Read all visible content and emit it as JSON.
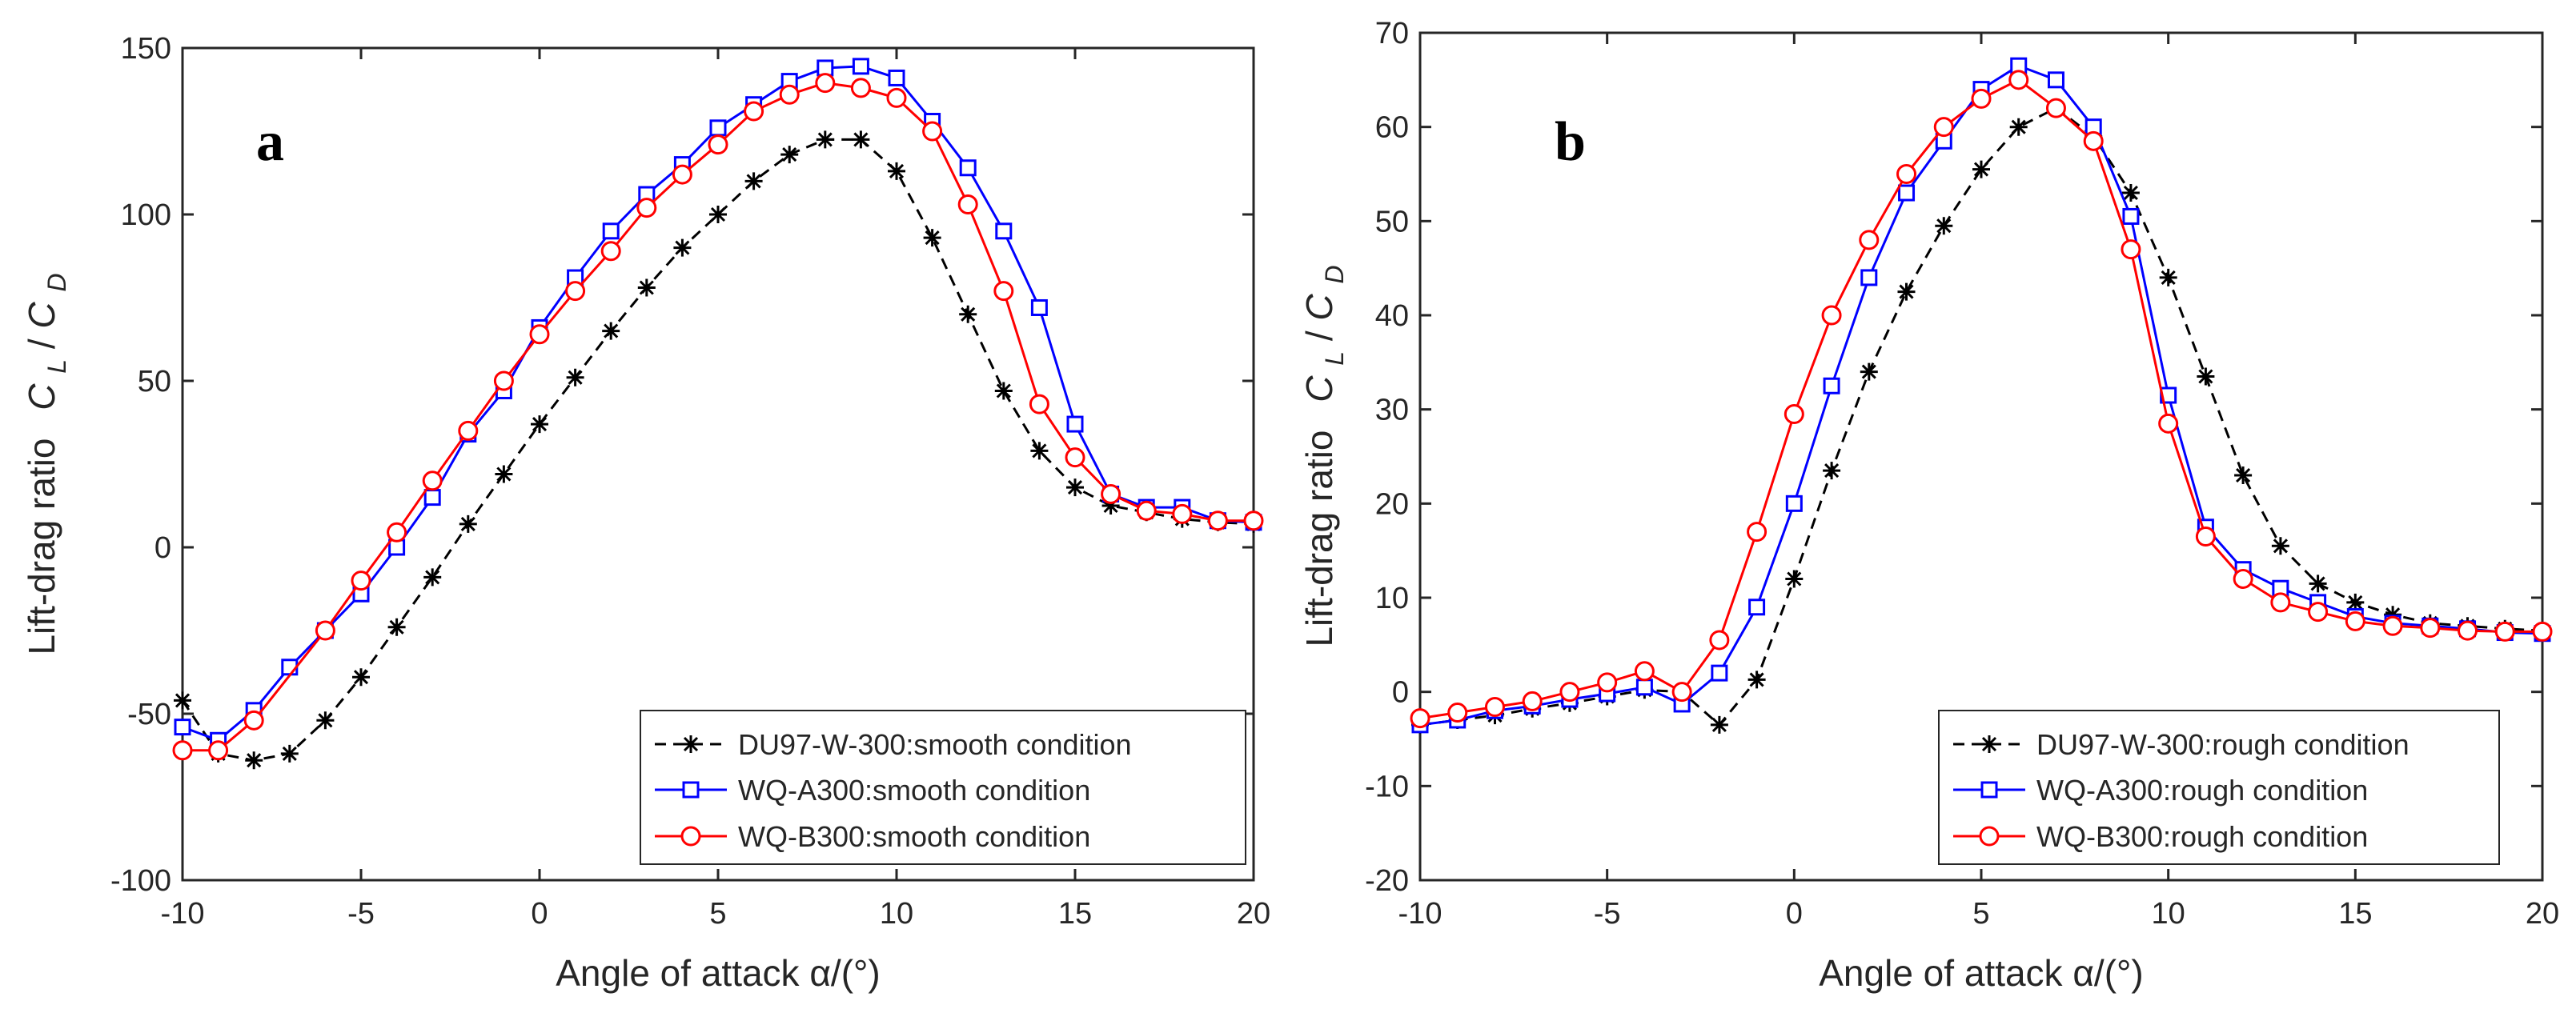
{
  "chart_data": [
    {
      "type": "line",
      "panel_label": "a",
      "xlabel": "Angle of attack α/(°)",
      "ylabel": "Lift-drag ratio",
      "ylabel_symbol": {
        "C1": "C",
        "sub1": "L",
        "slash": "/",
        "C2": "C",
        "sub2": "D"
      },
      "xlim": [
        -10,
        20
      ],
      "ylim": [
        -100,
        150
      ],
      "xticks": [
        -10,
        -5,
        0,
        5,
        10,
        15,
        20
      ],
      "yticks": [
        -100,
        -50,
        0,
        50,
        100,
        150
      ],
      "legend_position": "bottom-right",
      "x": [
        -10,
        -9,
        -8,
        -7,
        -6,
        -5,
        -4,
        -3,
        -2,
        -1,
        0,
        1,
        2,
        3,
        4,
        5,
        6,
        7,
        8,
        9,
        10,
        11,
        12,
        13,
        14,
        15,
        16,
        17,
        18,
        19,
        20
      ],
      "series": [
        {
          "name": "DU97-W-300:smooth condition",
          "color": "#000000",
          "marker": "asterisk",
          "dash": "dashed",
          "values": [
            -46,
            -62,
            -64,
            -62,
            -52,
            -39,
            -24,
            -9,
            7,
            22,
            37,
            51,
            65,
            78,
            90,
            100,
            110,
            118,
            122.5,
            122.5,
            113,
            93,
            70,
            47,
            29,
            18,
            12.5,
            10.5,
            8.5,
            7.5,
            7
          ]
        },
        {
          "name": "WQ-A300:smooth condition",
          "color": "#0000ff",
          "marker": "square",
          "dash": "solid",
          "values": [
            -54,
            -58,
            -49,
            -36,
            -25,
            -14,
            0,
            15,
            34,
            47,
            66,
            81,
            95,
            106,
            115,
            126,
            133,
            140,
            144,
            144.5,
            141,
            128,
            114,
            95,
            72,
            37,
            16,
            12,
            12,
            8,
            7.5
          ]
        },
        {
          "name": "WQ-B300:smooth condition",
          "color": "#ff0000",
          "marker": "circle",
          "dash": "solid",
          "values": [
            -61,
            -61,
            -52,
            null,
            -25,
            -10,
            4.5,
            20,
            35,
            50,
            64,
            77,
            89,
            102,
            112,
            121,
            131,
            136,
            139.5,
            138,
            135,
            125,
            103,
            77,
            43,
            27,
            16,
            11,
            10,
            8,
            8
          ]
        }
      ]
    },
    {
      "type": "line",
      "panel_label": "b",
      "xlabel": "Angle of attack α/(°)",
      "ylabel": "Lift-drag ratio",
      "ylabel_symbol": {
        "C1": "C",
        "sub1": "L",
        "slash": "/",
        "C2": "C",
        "sub2": "D"
      },
      "xlim": [
        -10,
        20
      ],
      "ylim": [
        -20,
        70
      ],
      "xticks": [
        -10,
        -5,
        0,
        5,
        10,
        15,
        20
      ],
      "yticks": [
        -20,
        -10,
        0,
        10,
        20,
        30,
        40,
        50,
        60,
        70
      ],
      "legend_position": "bottom-right",
      "x": [
        -10,
        -9,
        -8,
        -7,
        -6,
        -5,
        -4,
        -3,
        -2,
        -1,
        0,
        1,
        2,
        3,
        4,
        5,
        6,
        7,
        8,
        9,
        10,
        11,
        12,
        13,
        14,
        15,
        16,
        17,
        18,
        19,
        20
      ],
      "series": [
        {
          "name": "DU97-W-300:rough condition",
          "color": "#000000",
          "marker": "asterisk",
          "dash": "dashed",
          "values": [
            -3.5,
            -3,
            -2.5,
            -1.8,
            -1.2,
            -0.5,
            0.2,
            0,
            -3.5,
            1.3,
            12,
            23.5,
            34,
            42.5,
            49.5,
            55.5,
            60,
            62,
            59,
            53,
            44,
            33.5,
            23,
            15.5,
            11.5,
            9.5,
            8.2,
            7.3,
            7,
            6.7,
            6.5
          ]
        },
        {
          "name": "WQ-A300:rough condition",
          "color": "#0000ff",
          "marker": "square",
          "dash": "solid",
          "values": [
            -3.5,
            -3,
            -2,
            -1.5,
            -0.8,
            -0.2,
            0.5,
            -1.3,
            2,
            9,
            20,
            32.5,
            44,
            53,
            58.5,
            64,
            66.5,
            65,
            60,
            50.5,
            31.5,
            17.5,
            13,
            11,
            9.5,
            8,
            7.3,
            7,
            6.7,
            6.3,
            6.2
          ]
        },
        {
          "name": "WQ-B300:rough condition",
          "color": "#ff0000",
          "marker": "circle",
          "dash": "solid",
          "values": [
            -2.8,
            -2.2,
            -1.6,
            -1,
            0,
            1,
            2.2,
            0,
            5.5,
            17,
            29.5,
            40,
            48,
            55,
            60,
            63,
            65,
            62,
            58.5,
            47,
            28.5,
            16.5,
            12,
            9.5,
            8.5,
            7.5,
            7,
            6.8,
            6.5,
            6.4,
            6.4
          ]
        }
      ]
    }
  ]
}
